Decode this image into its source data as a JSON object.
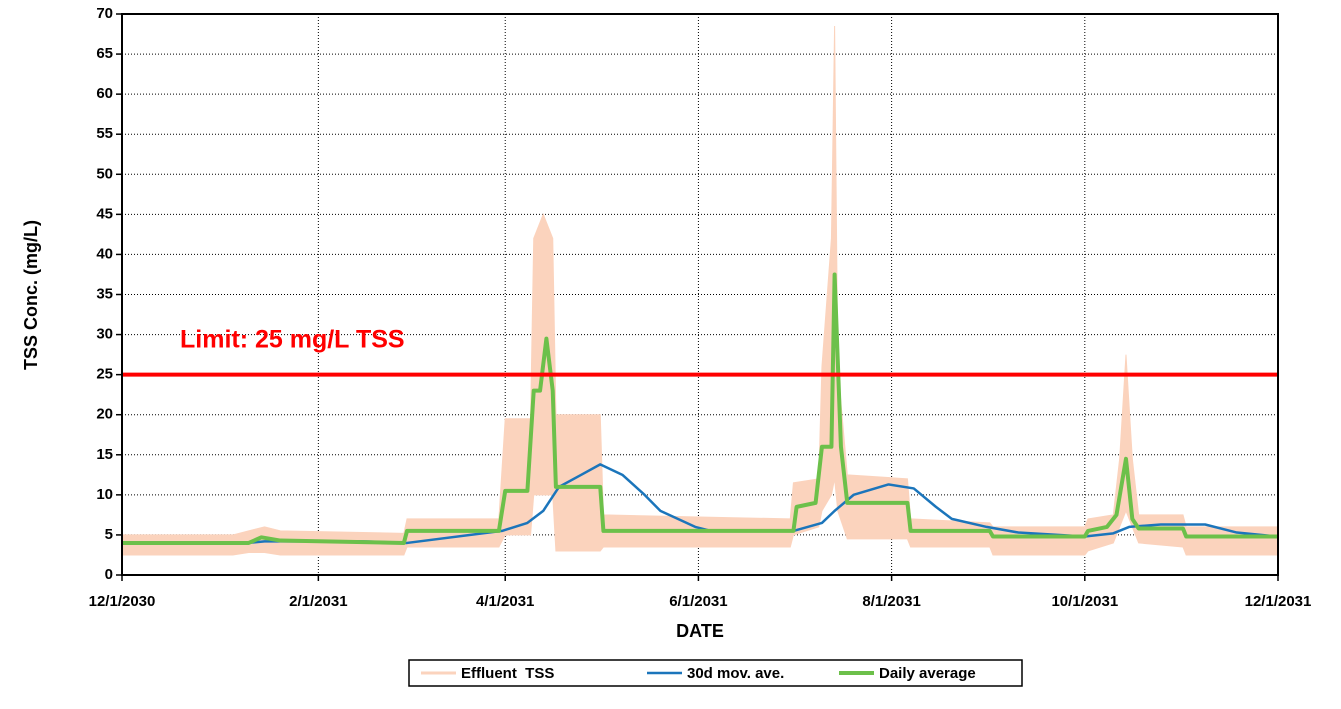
{
  "chart_data": {
    "type": "line",
    "x_label": "DATE",
    "y_label": "TSS Conc. (mg/L)",
    "xlim": [
      "2030-12-01",
      "2031-12-01"
    ],
    "xticks": [
      {
        "value": "2030-12-01",
        "label": "12/1/2030"
      },
      {
        "value": "2031-02-01",
        "label": "2/1/2031"
      },
      {
        "value": "2031-04-01",
        "label": "4/1/2031"
      },
      {
        "value": "2031-06-01",
        "label": "6/1/2031"
      },
      {
        "value": "2031-08-01",
        "label": "8/1/2031"
      },
      {
        "value": "2031-10-01",
        "label": "10/1/2031"
      },
      {
        "value": "2031-12-01",
        "label": "12/1/2031"
      }
    ],
    "ylim": [
      0,
      70
    ],
    "yticks": [
      0,
      5,
      10,
      15,
      20,
      25,
      30,
      35,
      40,
      45,
      50,
      55,
      60,
      65,
      70
    ],
    "grid": true,
    "legend": "bottom",
    "limit": {
      "value": 25,
      "color": "#ff0000",
      "label": "Limit: 25 mg/L TSS"
    },
    "series": [
      {
        "name": "Effluent  TSS",
        "type": "band",
        "color": "#fbd3bd",
        "x": [
          "2030-12-01",
          "2031-01-05",
          "2031-01-10",
          "2031-01-15",
          "2031-01-20",
          "2031-02-28",
          "2031-03-01",
          "2031-03-30",
          "2031-04-01",
          "2031-04-09",
          "2031-04-10",
          "2031-04-13",
          "2031-04-16",
          "2031-04-17",
          "2031-05-01",
          "2031-05-02",
          "2031-06-30",
          "2031-07-01",
          "2031-07-09",
          "2031-07-10",
          "2031-07-13",
          "2031-07-14",
          "2031-07-15",
          "2031-07-18",
          "2031-08-06",
          "2031-08-07",
          "2031-09-01",
          "2031-09-02",
          "2031-10-01",
          "2031-10-02",
          "2031-10-10",
          "2031-10-12",
          "2031-10-14",
          "2031-10-16",
          "2031-10-18",
          "2031-11-01",
          "2031-11-02",
          "2031-12-01"
        ],
        "low": [
          2.5,
          2.5,
          2.8,
          2.8,
          2.5,
          2.5,
          3.5,
          3.5,
          5,
          5,
          10,
          10,
          10,
          3,
          3,
          3.5,
          3.5,
          5,
          6,
          8,
          10,
          12,
          8,
          4.5,
          4.5,
          3.5,
          3.5,
          2.5,
          2.5,
          3,
          4,
          6,
          8,
          6,
          4,
          3.5,
          2.5,
          2.5
        ],
        "high": [
          5,
          5,
          5.5,
          6,
          5.5,
          5.2,
          7,
          7,
          19.5,
          19.5,
          42,
          45,
          42,
          20,
          20,
          7.5,
          7,
          11.5,
          12,
          26,
          42,
          68.5,
          26,
          12.5,
          12,
          7,
          6.5,
          6,
          6,
          7,
          7.5,
          14.5,
          27.5,
          14.5,
          7.5,
          7.5,
          6,
          6
        ]
      },
      {
        "name": "30d mov. ave.",
        "color": "#1b75bb",
        "x": [
          "2030-12-01",
          "2031-01-10",
          "2031-01-15",
          "2031-02-15",
          "2031-03-01",
          "2031-03-31",
          "2031-04-08",
          "2031-04-13",
          "2031-04-18",
          "2031-04-25",
          "2031-05-01",
          "2031-05-08",
          "2031-05-15",
          "2031-05-20",
          "2031-05-31",
          "2031-06-05",
          "2031-07-01",
          "2031-07-10",
          "2031-07-14",
          "2031-07-20",
          "2031-07-31",
          "2031-08-08",
          "2031-08-15",
          "2031-08-20",
          "2031-08-31",
          "2031-09-10",
          "2031-10-01",
          "2031-10-10",
          "2031-10-15",
          "2031-10-25",
          "2031-11-08",
          "2031-11-18",
          "2031-12-01"
        ],
        "values": [
          3.9,
          4.0,
          4.2,
          4.2,
          4.0,
          5.5,
          6.5,
          8,
          11,
          12.5,
          13.8,
          12.5,
          10,
          8,
          6,
          5.5,
          5.5,
          6.5,
          8,
          10,
          11.3,
          10.8,
          8.5,
          7,
          6,
          5.3,
          4.8,
          5.2,
          6,
          6.3,
          6.3,
          5.3,
          4.8
        ]
      },
      {
        "name": "Daily average",
        "color": "#6cc04a",
        "x": [
          "2030-12-01",
          "2031-01-10",
          "2031-01-14",
          "2031-01-20",
          "2031-02-28",
          "2031-03-01",
          "2031-03-30",
          "2031-04-01",
          "2031-04-08",
          "2031-04-10",
          "2031-04-12",
          "2031-04-14",
          "2031-04-16",
          "2031-04-17",
          "2031-05-01",
          "2031-05-02",
          "2031-07-01",
          "2031-07-02",
          "2031-07-08",
          "2031-07-10",
          "2031-07-13",
          "2031-07-14",
          "2031-07-16",
          "2031-07-18",
          "2031-08-06",
          "2031-08-07",
          "2031-09-01",
          "2031-09-02",
          "2031-10-01",
          "2031-10-02",
          "2031-10-08",
          "2031-10-11",
          "2031-10-14",
          "2031-10-16",
          "2031-10-18",
          "2031-11-01",
          "2031-11-02",
          "2031-12-01"
        ],
        "values": [
          4.0,
          4.0,
          4.7,
          4.3,
          4.0,
          5.5,
          5.5,
          10.5,
          10.5,
          23,
          23,
          29.5,
          23,
          11,
          11,
          5.5,
          5.5,
          8.5,
          9,
          16,
          16,
          37.5,
          16,
          9,
          9,
          5.5,
          5.5,
          4.8,
          4.8,
          5.5,
          6,
          7.5,
          14.5,
          7,
          5.8,
          5.8,
          4.8,
          4.8
        ]
      }
    ]
  }
}
